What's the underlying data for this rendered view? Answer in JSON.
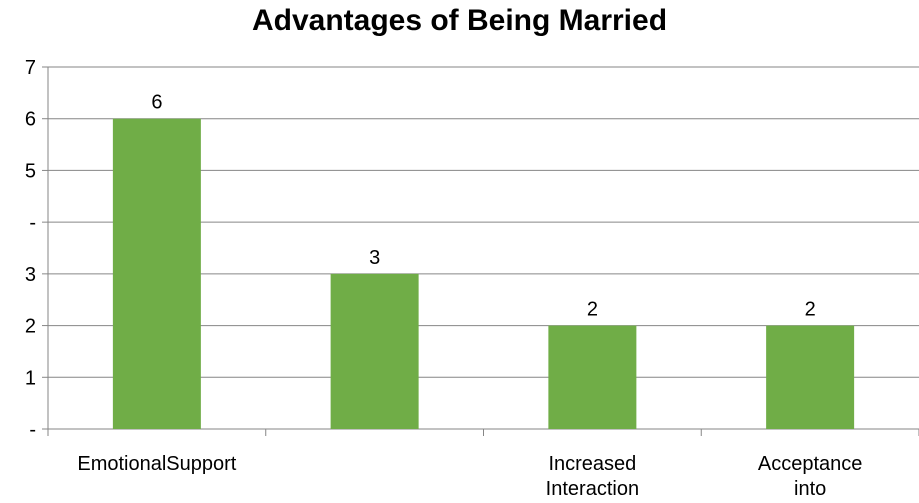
{
  "chart_data": {
    "type": "bar",
    "title": "Advantages of Being Married",
    "xlabel": "",
    "ylabel": "",
    "categories": [
      "EmotionalSupport",
      "",
      "Increased Interaction",
      "Acceptance into"
    ],
    "values": [
      6,
      3,
      2,
      2
    ],
    "data_labels": [
      "6",
      "3",
      "2",
      "2"
    ],
    "y_tick_labels": [
      "-",
      "1",
      "2",
      "3",
      "-",
      "5",
      "6",
      "7"
    ],
    "ylim": [
      0,
      7
    ],
    "grid": true,
    "legend": "none",
    "colors": {
      "bar": "#70AD47",
      "grid": "#868686",
      "axis": "#868686"
    }
  }
}
